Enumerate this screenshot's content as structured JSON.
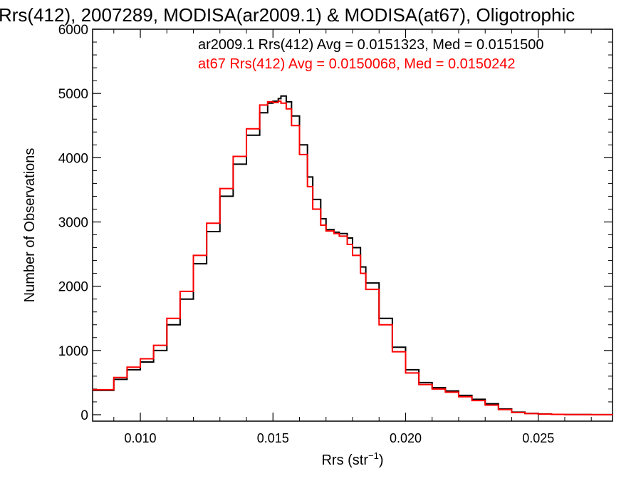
{
  "chart_data": {
    "type": "line",
    "title": "Rrs(412), 2007289, MODISA(ar2009.1) & MODISA(at67), Oligotrophic",
    "xlabel": "Rrs (str",
    "xlabel_sup": "−1",
    "xlabel_close": ")",
    "ylabel": "Number of Observations",
    "xlim": [
      0.0082,
      0.0278
    ],
    "ylim": [
      -100,
      6000
    ],
    "x_ticks": [
      0.01,
      0.015,
      0.02,
      0.025
    ],
    "x_tick_labels": [
      "0.010",
      "0.015",
      "0.020",
      "0.025"
    ],
    "y_ticks": [
      0,
      1000,
      2000,
      3000,
      4000,
      5000,
      6000
    ],
    "y_tick_labels": [
      "0",
      "1000",
      "2000",
      "3000",
      "4000",
      "5000",
      "6000"
    ],
    "series": [
      {
        "name": "ar2009.1",
        "color": "#000000",
        "legend_text": "ar2009.1 Rrs(412) Avg = 0.0151323, Med = 0.0151500",
        "x": [
          0.0082,
          0.009,
          0.0095,
          0.01,
          0.0105,
          0.011,
          0.0115,
          0.012,
          0.0125,
          0.013,
          0.0135,
          0.014,
          0.0145,
          0.0148,
          0.015,
          0.0152,
          0.0153,
          0.0155,
          0.0157,
          0.016,
          0.0163,
          0.0165,
          0.0168,
          0.017,
          0.0173,
          0.0175,
          0.0178,
          0.018,
          0.0183,
          0.0185,
          0.019,
          0.0195,
          0.02,
          0.0205,
          0.021,
          0.0215,
          0.022,
          0.0225,
          0.023,
          0.0235,
          0.024,
          0.0245,
          0.025,
          0.0255,
          0.026,
          0.027,
          0.0278
        ],
        "y": [
          380,
          550,
          700,
          820,
          1000,
          1400,
          1800,
          2350,
          2850,
          3400,
          3900,
          4350,
          4700,
          4850,
          4880,
          4920,
          4960,
          4870,
          4650,
          4200,
          3700,
          3350,
          3050,
          2880,
          2840,
          2820,
          2750,
          2600,
          2300,
          2050,
          1500,
          1050,
          700,
          500,
          420,
          370,
          300,
          240,
          170,
          90,
          40,
          20,
          12,
          6,
          3,
          1,
          0
        ]
      },
      {
        "name": "at67",
        "color": "#ff0000",
        "legend_text": "at67 Rrs(412) Avg = 0.0150068, Med = 0.0150242",
        "x": [
          0.0082,
          0.009,
          0.0095,
          0.01,
          0.0105,
          0.011,
          0.0115,
          0.012,
          0.0125,
          0.013,
          0.0135,
          0.014,
          0.0145,
          0.0148,
          0.015,
          0.0152,
          0.0153,
          0.0155,
          0.0157,
          0.016,
          0.0163,
          0.0165,
          0.0168,
          0.017,
          0.0173,
          0.0175,
          0.0178,
          0.018,
          0.0183,
          0.0185,
          0.019,
          0.0195,
          0.02,
          0.0205,
          0.021,
          0.0215,
          0.022,
          0.0225,
          0.023,
          0.0235,
          0.024,
          0.0245,
          0.025,
          0.0255,
          0.026,
          0.027,
          0.0278
        ],
        "y": [
          390,
          580,
          740,
          870,
          1080,
          1500,
          1920,
          2480,
          2980,
          3520,
          4020,
          4450,
          4820,
          4870,
          4860,
          4880,
          4850,
          4760,
          4500,
          4050,
          3550,
          3200,
          2950,
          2860,
          2820,
          2780,
          2650,
          2480,
          2200,
          1950,
          1400,
          980,
          650,
          470,
          400,
          350,
          280,
          220,
          150,
          80,
          35,
          18,
          10,
          5,
          2,
          1,
          0
        ]
      }
    ]
  }
}
